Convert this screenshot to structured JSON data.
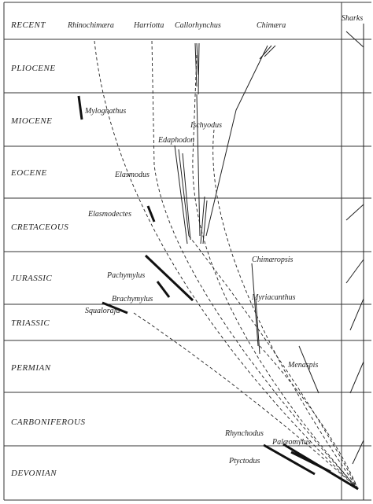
{
  "periods": [
    "RECENT",
    "PLIOCENE",
    "MIOCENE",
    "EOCENE",
    "CRETACEOUS",
    "JURASSIC",
    "TRIASSIC",
    "PERMIAN",
    "CARBONIFEROUS",
    "DEVONIAN"
  ],
  "taxa": [
    "Rhinochimæra",
    "Harriotta",
    "Callorhynchus",
    "Chimæra",
    "Sharks",
    "Mylognathus",
    "Ischyodus",
    "Edaphodon",
    "Elasmodus",
    "Elasmodectes",
    "Chimæropsis",
    "Pachymylus",
    "Myriacanthus",
    "Brachymylus",
    "Squaloraja",
    "Menaspis",
    "Rhynchodus",
    "Palæomylus",
    "Ptyctodus"
  ]
}
